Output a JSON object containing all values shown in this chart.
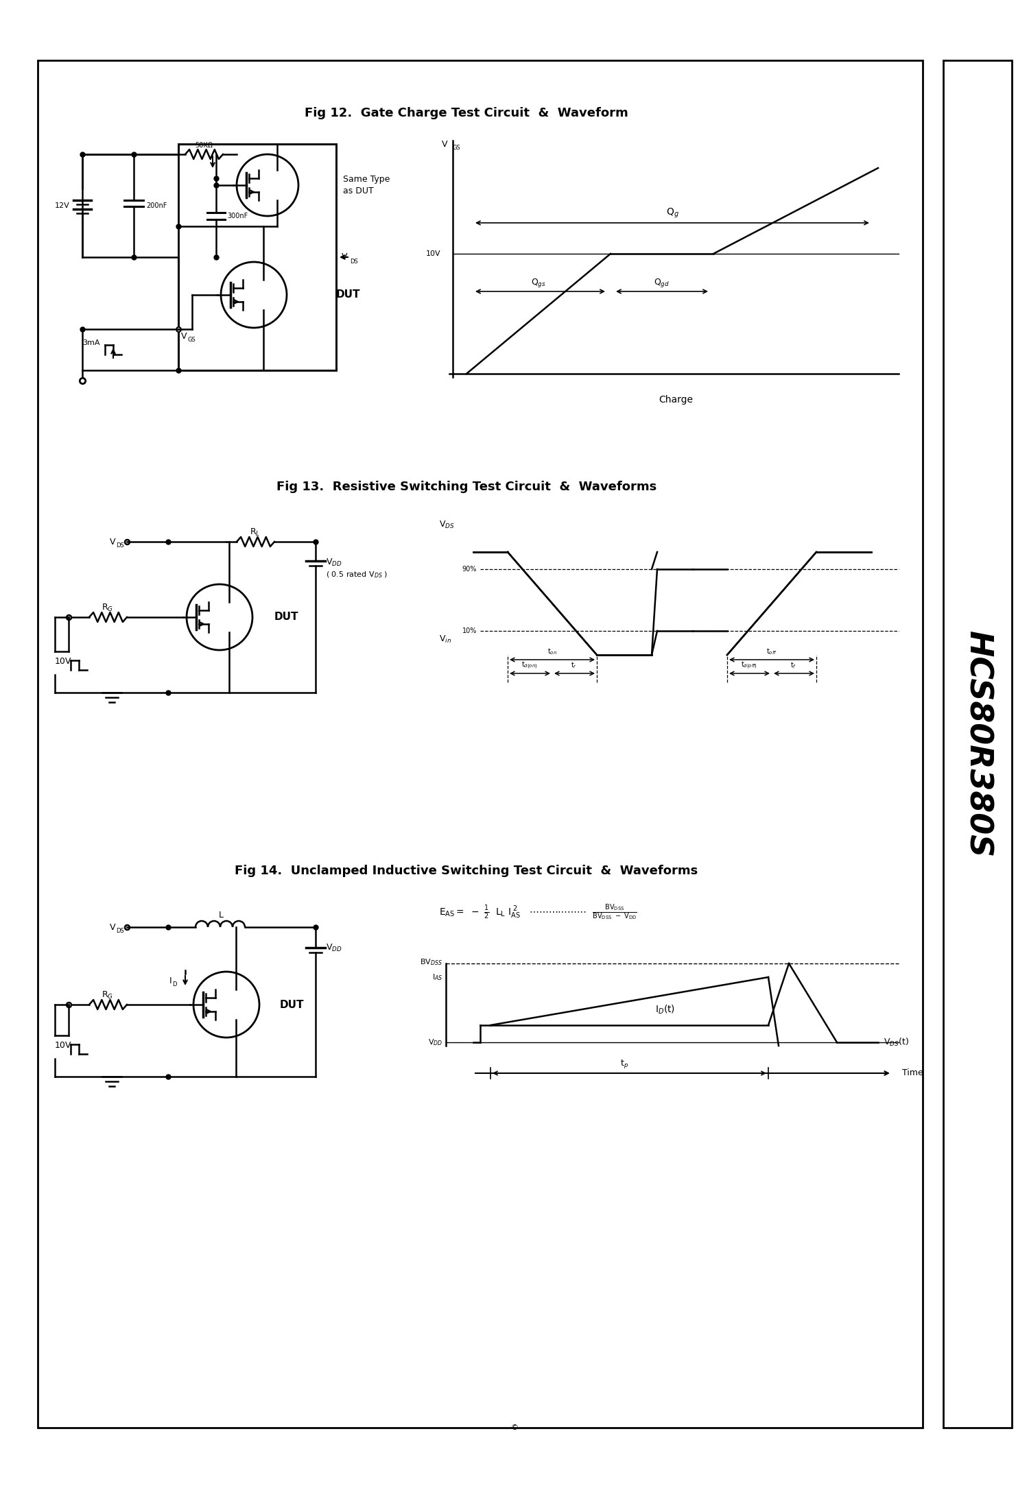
{
  "page_bg": "#ffffff",
  "fig12_title": "Fig 12.  Gate Charge Test Circuit  &  Waveform",
  "fig13_title": "Fig 13.  Resistive Switching Test Circuit  &  Waveforms",
  "fig14_title": "Fig 14.  Unclamped Inductive Switching Test Circuit  &  Waveforms",
  "side_label": "HCS80R380S",
  "copyright": "©"
}
